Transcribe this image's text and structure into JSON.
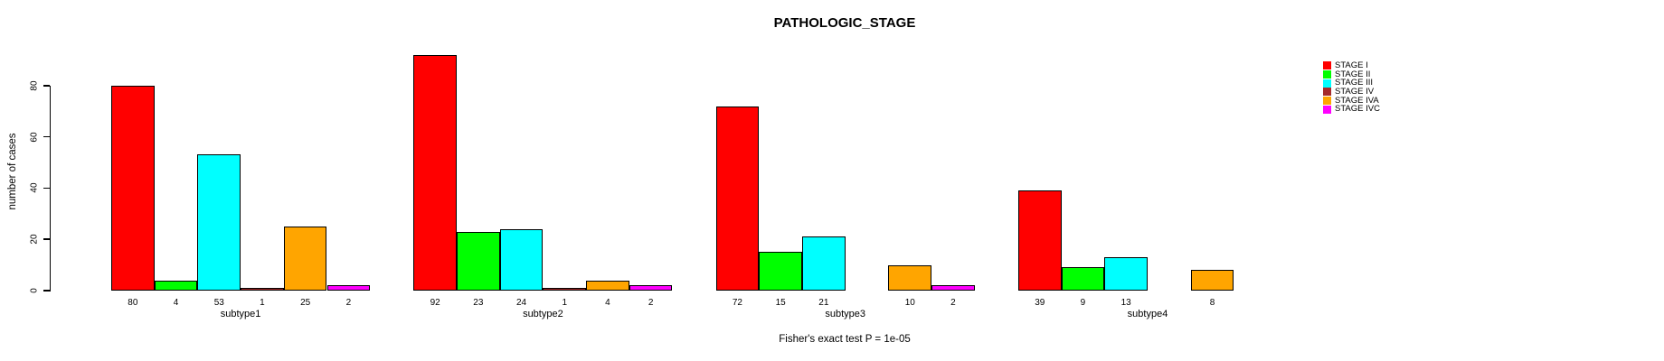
{
  "title": "PATHOLOGIC_STAGE",
  "caption": "Fisher's exact test P = 1e-05",
  "chart_data": {
    "type": "bar",
    "title": "PATHOLOGIC_STAGE",
    "xlabel": "",
    "ylabel": "number of cases",
    "ylim": [
      0,
      92
    ],
    "yticks": [
      0,
      20,
      40,
      60,
      80
    ],
    "grid": false,
    "legend_position": "top-right",
    "bar_label_rule": "value shown under each bar when > 0",
    "categories": [
      "subtype1",
      "subtype2",
      "subtype3",
      "subtype4"
    ],
    "series": [
      {
        "name": "STAGE I",
        "color": "#ff0000",
        "values": [
          80,
          92,
          72,
          39
        ]
      },
      {
        "name": "STAGE II",
        "color": "#00ff00",
        "values": [
          4,
          23,
          15,
          9
        ]
      },
      {
        "name": "STAGE III",
        "color": "#00ffff",
        "values": [
          53,
          24,
          21,
          13
        ]
      },
      {
        "name": "STAGE IV",
        "color": "#a52a2a",
        "values": [
          1,
          1,
          0,
          0
        ]
      },
      {
        "name": "STAGE IVA",
        "color": "#ffa500",
        "values": [
          25,
          4,
          10,
          8
        ]
      },
      {
        "name": "STAGE IVC",
        "color": "#ff00ff",
        "values": [
          2,
          2,
          2,
          0
        ]
      }
    ],
    "caption": "Fisher's exact test P = 1e-05"
  }
}
